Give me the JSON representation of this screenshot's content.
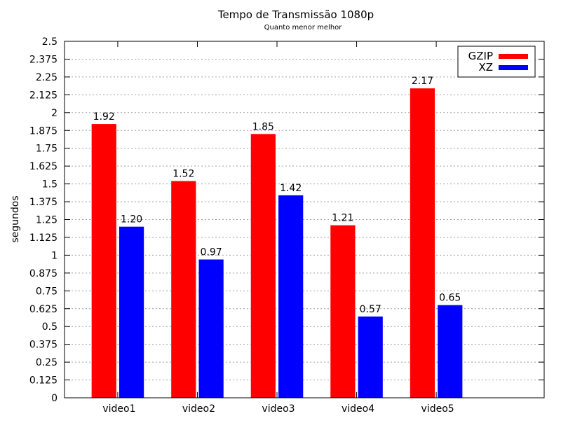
{
  "chart_data": {
    "type": "bar",
    "title": "Tempo de Transmissão 1080p",
    "subtitle": "Quanto menor melhor",
    "xlabel": "",
    "ylabel": "segundos",
    "categories": [
      "video1",
      "video2",
      "video3",
      "video4",
      "video5"
    ],
    "series": [
      {
        "name": "GZIP",
        "color": "#ff0000",
        "values": [
          1.92,
          1.52,
          1.85,
          1.21,
          2.17
        ],
        "value_labels": [
          "1.92",
          "1.52",
          "1.85",
          "1.21",
          "2.17"
        ]
      },
      {
        "name": "XZ",
        "color": "#0000ff",
        "values": [
          1.2,
          0.97,
          1.42,
          0.57,
          0.65
        ],
        "value_labels": [
          "1.20",
          "0.97",
          "1.42",
          "0.57",
          "0.65"
        ]
      }
    ],
    "ylim": [
      0,
      2.5
    ],
    "yticks": [
      "0",
      "0.125",
      "0.25",
      "0.375",
      "0.5",
      "0.625",
      "0.75",
      "0.875",
      "1",
      "1.125",
      "1.25",
      "1.375",
      "1.5",
      "1.625",
      "1.75",
      "1.875",
      "2",
      "2.125",
      "2.25",
      "2.375",
      "2.5"
    ],
    "grid": true,
    "legend_position": "top-right"
  }
}
